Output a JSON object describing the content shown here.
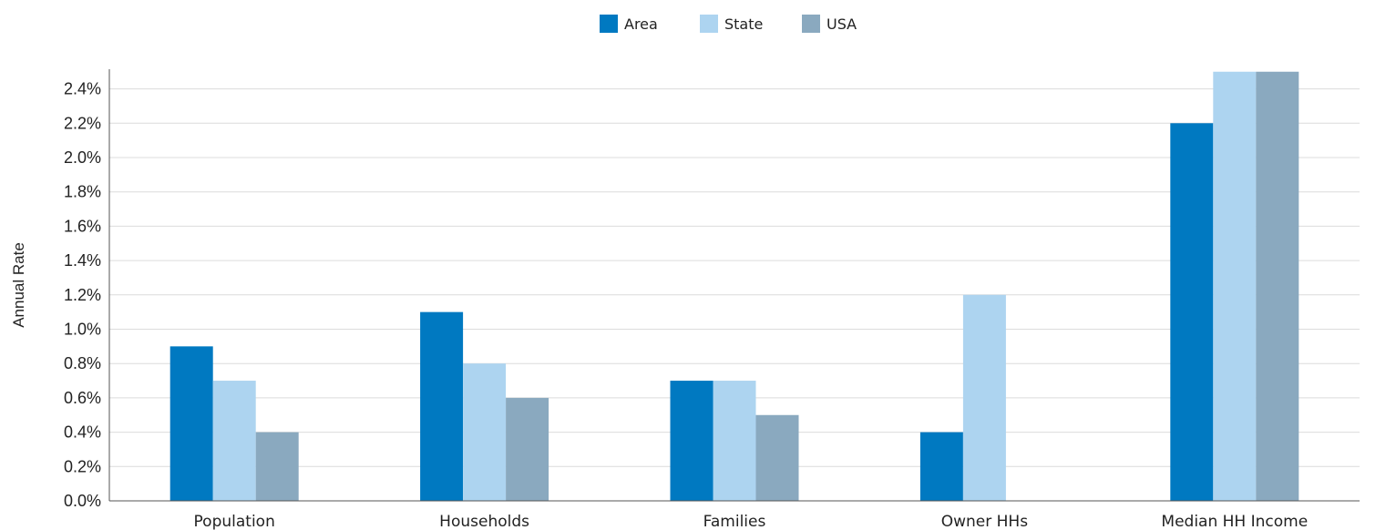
{
  "chart_data": {
    "type": "bar",
    "categories": [
      "Population",
      "Households",
      "Families",
      "Owner HHs",
      "Median HH Income"
    ],
    "series": [
      {
        "name": "Area",
        "color": "#0079c1",
        "values": [
          0.9,
          1.1,
          0.7,
          0.4,
          2.2
        ]
      },
      {
        "name": "State",
        "color": "#add4f0",
        "values": [
          0.7,
          0.8,
          0.7,
          1.2,
          2.5
        ]
      },
      {
        "name": "USA",
        "color": "#8aa9bf",
        "values": [
          0.4,
          0.6,
          0.5,
          null,
          2.5
        ]
      }
    ],
    "ylabel": "Annual Rate",
    "xlabel": "",
    "ylim": [
      0,
      2.5
    ],
    "yticks": [
      "0.0%",
      "0.2%",
      "0.4%",
      "0.6%",
      "0.8%",
      "1.0%",
      "1.2%",
      "1.4%",
      "1.6%",
      "1.8%",
      "2.0%",
      "2.2%",
      "2.4%"
    ],
    "grid": true,
    "legend_position": "top-center"
  }
}
